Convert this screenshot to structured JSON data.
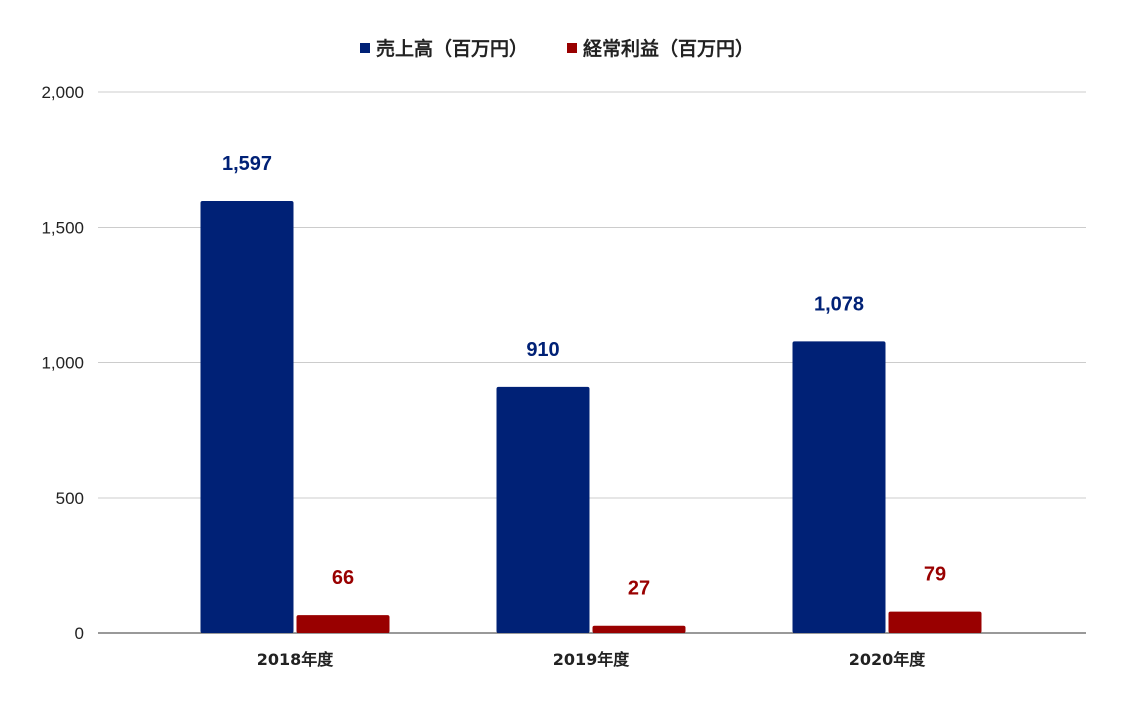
{
  "chart_data": {
    "type": "bar",
    "title": "",
    "xlabel": "",
    "ylabel": "",
    "categories": [
      "2018年度",
      "2019年度",
      "2020年度"
    ],
    "series": [
      {
        "name": "売上高（百万円）",
        "values": [
          1597,
          910,
          1078
        ],
        "labels": [
          "1,597",
          "910",
          "1,078"
        ],
        "color": "#002176"
      },
      {
        "name": "経常利益（百万円）",
        "values": [
          66,
          27,
          79
        ],
        "labels": [
          "66",
          "27",
          "79"
        ],
        "color": "#990000"
      }
    ],
    "ylim": [
      0,
      2000
    ],
    "yticks": [
      0,
      500,
      1000,
      1500,
      2000
    ],
    "ytick_labels": [
      "0",
      "500",
      "1,000",
      "1,500",
      "2,000"
    ],
    "grid": true,
    "legend_position": "top"
  }
}
